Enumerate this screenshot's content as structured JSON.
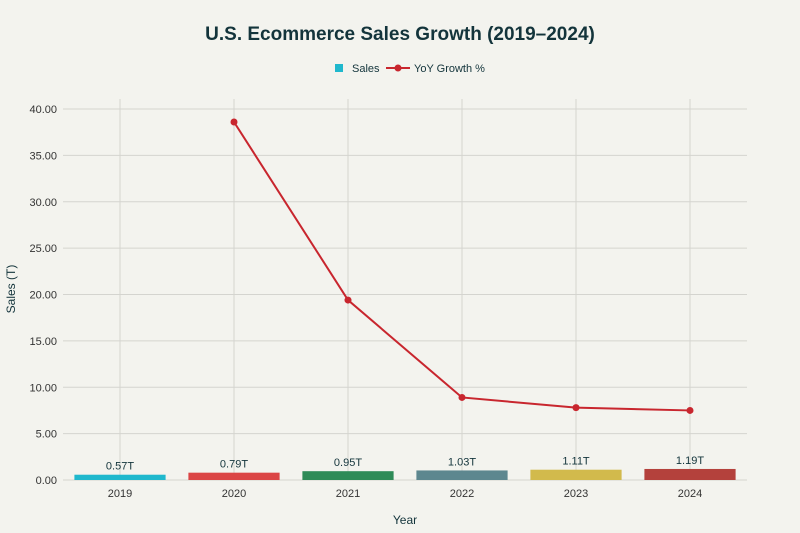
{
  "chart_data": {
    "type": "bar",
    "title": "U.S. Ecommerce Sales Growth (2019–2024)",
    "xlabel": "Year",
    "ylabel": "Sales (T)",
    "ylim": [
      0,
      40
    ],
    "yticks": [
      "0.00",
      "5.00",
      "10.00",
      "15.00",
      "20.00",
      "25.00",
      "30.00",
      "35.00",
      "40.00"
    ],
    "grid": true,
    "legend_placement": "top-center",
    "categories": [
      "2019",
      "2020",
      "2021",
      "2022",
      "2023",
      "2024"
    ],
    "series": [
      {
        "name": "Sales",
        "type": "bar",
        "values": [
          0.57,
          0.79,
          0.95,
          1.03,
          1.11,
          1.19
        ],
        "labels": [
          "0.57T",
          "0.79T",
          "0.95T",
          "1.03T",
          "1.11T",
          "1.19T"
        ],
        "colors": [
          "#1fb8cd",
          "#db4545",
          "#2e8b57",
          "#5d878f",
          "#d2ba4c",
          "#b4413c"
        ],
        "legend_color": "#1fb8cd"
      },
      {
        "name": "YoY Growth %",
        "type": "line",
        "values": [
          null,
          38.6,
          19.4,
          8.9,
          7.8,
          7.5
        ],
        "color": "#c8262e"
      }
    ]
  }
}
